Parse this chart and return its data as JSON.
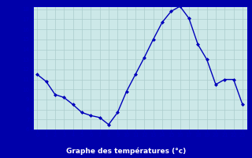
{
  "hours": [
    0,
    1,
    2,
    3,
    4,
    5,
    6,
    7,
    8,
    9,
    10,
    11,
    12,
    13,
    14,
    15,
    16,
    17,
    18,
    19,
    20,
    21,
    22,
    23
  ],
  "temps": [
    11.5,
    10.8,
    9.5,
    9.2,
    8.5,
    7.7,
    7.4,
    7.2,
    6.5,
    7.7,
    9.8,
    11.5,
    13.2,
    15.0,
    16.7,
    17.8,
    18.3,
    17.1,
    14.5,
    13.0,
    10.5,
    11.0,
    11.0,
    8.5
  ],
  "xlabel": "Graphe des températures (°c)",
  "ylim": [
    6,
    18
  ],
  "xlim_min": -0.5,
  "xlim_max": 23.5,
  "yticks": [
    6,
    7,
    8,
    9,
    10,
    11,
    12,
    13,
    14,
    15,
    16,
    17,
    18
  ],
  "xticks": [
    0,
    1,
    2,
    3,
    4,
    5,
    6,
    7,
    8,
    9,
    10,
    11,
    12,
    13,
    14,
    15,
    16,
    17,
    18,
    19,
    20,
    21,
    22,
    23
  ],
  "line_color": "#0000bb",
  "marker_color": "#0000bb",
  "bg_color": "#cce8e8",
  "grid_color": "#aacccc",
  "axis_label_color": "#ffffff",
  "tick_color": "#0000bb",
  "border_color": "#0000bb",
  "xlabel_bg": "#0000aa",
  "fig_bg": "#0000aa"
}
